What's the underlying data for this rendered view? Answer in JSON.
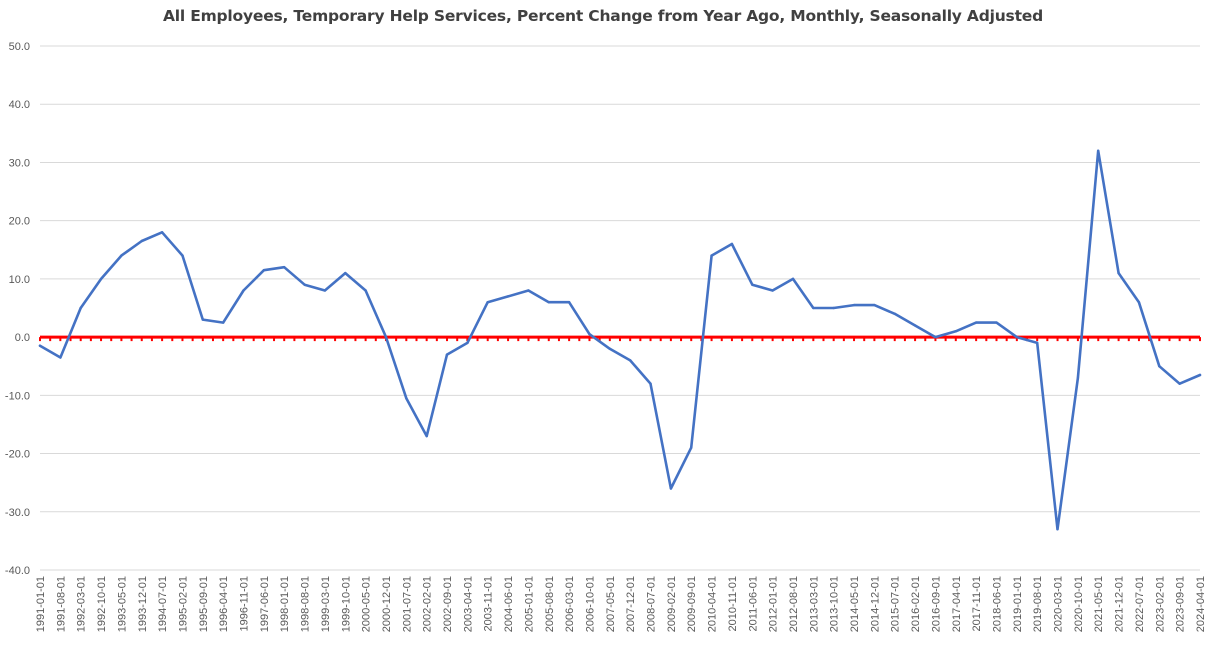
{
  "chart_data": {
    "type": "line",
    "title": "All Employees, Temporary Help Services, Percent Change from Year Ago, Monthly, Seasonally Adjusted",
    "xlabel": "",
    "ylabel": "",
    "ylim": [
      -40,
      50
    ],
    "ytick_labels": [
      "50.0",
      "40.0",
      "30.0",
      "20.0",
      "10.0",
      "0.0",
      "-10.0",
      "-20.0",
      "-30.0",
      "-40.0"
    ],
    "xtick_labels": [
      "1991-01-01",
      "1991-08-01",
      "1992-03-01",
      "1992-10-01",
      "1993-05-01",
      "1993-12-01",
      "1994-07-01",
      "1995-02-01",
      "1995-09-01",
      "1996-04-01",
      "1996-11-01",
      "1997-06-01",
      "1998-01-01",
      "1998-08-01",
      "1999-03-01",
      "1999-10-01",
      "2000-05-01",
      "2000-12-01",
      "2001-07-01",
      "2002-02-01",
      "2002-09-01",
      "2003-04-01",
      "2003-11-01",
      "2004-06-01",
      "2005-01-01",
      "2005-08-01",
      "2006-03-01",
      "2006-10-01",
      "2007-05-01",
      "2007-12-01",
      "2008-07-01",
      "2009-02-01",
      "2009-09-01",
      "2010-04-01",
      "2010-11-01",
      "2011-06-01",
      "2012-01-01",
      "2012-08-01",
      "2013-03-01",
      "2013-10-01",
      "2014-05-01",
      "2014-12-01",
      "2015-07-01",
      "2016-02-01",
      "2016-09-01",
      "2017-04-01",
      "2017-11-01",
      "2018-06-01",
      "2019-01-01",
      "2019-08-01",
      "2020-03-01",
      "2020-10-01",
      "2021-05-01",
      "2021-12-01",
      "2022-07-01",
      "2023-02-01",
      "2023-09-01",
      "2024-04-01"
    ],
    "grid": true,
    "legend": "none",
    "colors": {
      "series": "#4472C4",
      "zero_line": "#FF0000",
      "grid": "#D9D9D9",
      "title": "#404040"
    },
    "series": [
      {
        "x": [
          "1991-01",
          "1991-08",
          "1992-03",
          "1992-10",
          "1993-05",
          "1993-12",
          "1994-07",
          "1995-02",
          "1995-09",
          "1996-04",
          "1996-11",
          "1997-06",
          "1998-01",
          "1998-08",
          "1999-03",
          "1999-10",
          "2000-05",
          "2000-12",
          "2001-07",
          "2002-02",
          "2002-09",
          "2003-04",
          "2003-11",
          "2004-06",
          "2005-01",
          "2005-08",
          "2006-03",
          "2006-10",
          "2007-05",
          "2007-12",
          "2008-07",
          "2009-02",
          "2009-09",
          "2010-04",
          "2010-11",
          "2011-06",
          "2012-01",
          "2012-08",
          "2013-03",
          "2013-10",
          "2014-05",
          "2014-12",
          "2015-07",
          "2016-02",
          "2016-09",
          "2017-04",
          "2017-11",
          "2018-06",
          "2019-01",
          "2019-08",
          "2020-03",
          "2020-10",
          "2021-05",
          "2021-12",
          "2022-07",
          "2023-02",
          "2023-09",
          "2024-04"
        ],
        "values": [
          -1.5,
          -3.5,
          5.0,
          10.0,
          14.0,
          16.5,
          18.0,
          14.0,
          3.0,
          2.5,
          8.0,
          11.5,
          12.0,
          9.0,
          8.0,
          11.0,
          8.0,
          0.0,
          -10.5,
          -17.0,
          -3.0,
          -1.0,
          6.0,
          7.0,
          8.0,
          6.0,
          6.0,
          0.5,
          -2.0,
          -4.0,
          -8.0,
          -26.0,
          -19.0,
          14.0,
          16.0,
          9.0,
          8.0,
          10.0,
          5.0,
          5.0,
          5.5,
          5.5,
          4.0,
          2.0,
          0.0,
          1.0,
          2.5,
          2.5,
          0.0,
          -1.0,
          -33.0,
          -7.0,
          32.0,
          11.0,
          6.0,
          -5.0,
          -8.0,
          -6.5
        ]
      }
    ]
  }
}
